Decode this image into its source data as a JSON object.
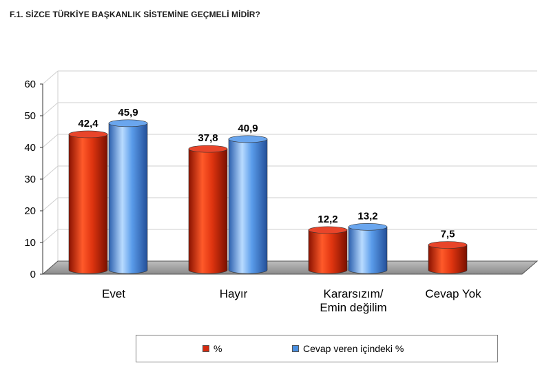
{
  "title": "F.1. SİZCE TÜRKİYE BAŞKANLIK SİSTEMİNE GEÇMELİ MİDİR?",
  "chart_data": {
    "type": "bar",
    "categories": [
      [
        "Evet"
      ],
      [
        "Hayır"
      ],
      [
        "Kararsızım/",
        "Emin değilim"
      ],
      [
        "Cevap Yok"
      ]
    ],
    "series": [
      {
        "name": "%",
        "color": "#d42a10",
        "values": [
          42.4,
          37.8,
          12.2,
          7.5
        ],
        "labels": [
          "42,4",
          "37,8",
          "12,2",
          "7,5"
        ]
      },
      {
        "name": "Cevap veren içindeki %",
        "color": "#4a8fe0",
        "values": [
          45.9,
          40.9,
          13.2,
          null
        ],
        "labels": [
          "45,9",
          "40,9",
          "13,2",
          ""
        ]
      }
    ],
    "ylim": [
      0,
      60
    ],
    "yticks": [
      0,
      10,
      20,
      30,
      40,
      50,
      60
    ],
    "grid": true,
    "legend": "bottom"
  }
}
